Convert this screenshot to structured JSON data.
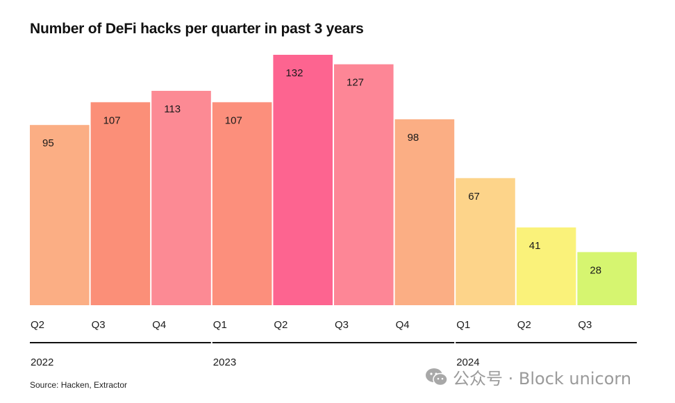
{
  "chart_data": {
    "type": "bar",
    "title": "Number of DeFi hacks per quarter in past 3 years",
    "categories": [
      "Q2",
      "Q3",
      "Q4",
      "Q1",
      "Q2",
      "Q3",
      "Q4",
      "Q1",
      "Q2",
      "Q3"
    ],
    "values": [
      95,
      107,
      113,
      107,
      132,
      127,
      98,
      67,
      41,
      28
    ],
    "colors": [
      "#fbae84",
      "#fb8f78",
      "#fc8a94",
      "#fc8f7c",
      "#fd6490",
      "#fd8696",
      "#fbae84",
      "#fdd48a",
      "#faf27a",
      "#d6f570"
    ],
    "year_groups": [
      {
        "label": "2022",
        "start": 0,
        "end": 2
      },
      {
        "label": "2023",
        "start": 3,
        "end": 6
      },
      {
        "label": "2024",
        "start": 7,
        "end": 9
      }
    ],
    "ylim": [
      0,
      132
    ],
    "xlabel": "",
    "ylabel": "",
    "grid": false
  },
  "source": "Source: Hacken, Extractor",
  "watermark": {
    "text": "公众号 · Block unicorn",
    "icon": "wechat-icon"
  }
}
